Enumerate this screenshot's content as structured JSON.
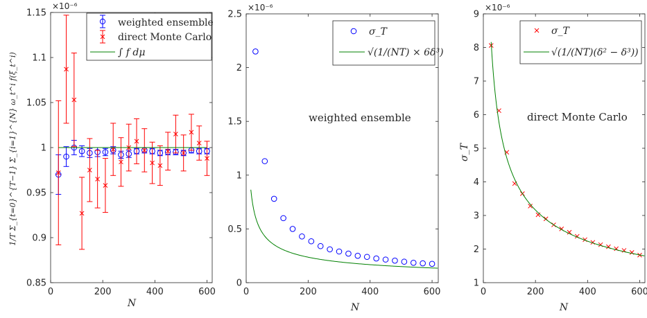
{
  "chart_data": [
    {
      "type": "scatter",
      "xlabel": "N",
      "ylabel": "1/T Σ_{t=0}^{T−1} Σ_{i=1}^{N} ω_t^i f(ξ_t^i)",
      "xlim": [
        0,
        620
      ],
      "ylim": [
        0.85,
        1.15
      ],
      "xticks": [
        "0",
        "200",
        "400",
        "600"
      ],
      "yticks": [
        "0.85",
        "0.9",
        "0.95",
        "1",
        "1.05",
        "1.1",
        "1.15"
      ],
      "exponent_label": "×10⁻⁶",
      "legend_position": "top-right",
      "x": [
        30,
        60,
        90,
        120,
        150,
        180,
        210,
        240,
        270,
        300,
        330,
        360,
        390,
        420,
        450,
        480,
        510,
        540,
        570,
        600
      ],
      "series": [
        {
          "name": "weighted ensemble",
          "marker": "circle",
          "color": "#0000ff",
          "values": [
            0.97,
            0.99,
            1.0,
            0.996,
            0.994,
            0.995,
            0.995,
            0.997,
            0.992,
            0.993,
            0.996,
            0.997,
            0.996,
            0.994,
            0.995,
            0.995,
            0.994,
            0.997,
            0.996,
            0.996
          ],
          "err": [
            0.022,
            0.011,
            0.008,
            0.006,
            0.005,
            0.005,
            0.004,
            0.004,
            0.004,
            0.004,
            0.003,
            0.003,
            0.003,
            0.003,
            0.003,
            0.003,
            0.003,
            0.003,
            0.003,
            0.003
          ]
        },
        {
          "name": "direct Monte Carlo",
          "marker": "x",
          "color": "#ff0000",
          "values": [
            0.972,
            1.087,
            1.053,
            0.927,
            0.975,
            0.965,
            0.958,
            0.998,
            0.984,
            1.0,
            1.007,
            0.997,
            0.983,
            0.98,
            0.996,
            1.015,
            0.994,
            1.017,
            1.005,
            0.988
          ],
          "err": [
            0.08,
            0.06,
            0.052,
            0.04,
            0.035,
            0.032,
            0.03,
            0.029,
            0.027,
            0.026,
            0.025,
            0.024,
            0.023,
            0.022,
            0.021,
            0.021,
            0.02,
            0.02,
            0.019,
            0.019
          ]
        },
        {
          "name": "∫ f dμ",
          "marker": "line",
          "color": "#008000",
          "x": [
            30,
            600
          ],
          "values": [
            1.0,
            1.0
          ]
        }
      ]
    },
    {
      "type": "scatter",
      "xlabel": "N",
      "ylabel": "",
      "xlim": [
        0,
        620
      ],
      "ylim": [
        0,
        2.5
      ],
      "xticks": [
        "0",
        "200",
        "400",
        "600"
      ],
      "yticks": [
        "0",
        "0.5",
        "1",
        "1.5",
        "2",
        "2.5"
      ],
      "exponent_label": "×10⁻⁶",
      "legend_position": "top-right",
      "annotation": "weighted ensemble",
      "series": [
        {
          "name": "σ_T",
          "marker": "circle",
          "color": "#0000ff",
          "x": [
            30,
            60,
            90,
            120,
            150,
            180,
            210,
            240,
            270,
            300,
            330,
            360,
            390,
            420,
            450,
            480,
            510,
            540,
            570,
            600
          ],
          "values": [
            2.15,
            1.13,
            0.78,
            0.6,
            0.5,
            0.43,
            0.385,
            0.34,
            0.31,
            0.29,
            0.27,
            0.25,
            0.24,
            0.225,
            0.215,
            0.205,
            0.195,
            0.185,
            0.18,
            0.175
          ]
        },
        {
          "name": "√(1/(NT) × 6δ³)",
          "marker": "line",
          "color": "#008000",
          "formula_coeff": 3.35,
          "x_range": [
            15,
            620
          ]
        }
      ]
    },
    {
      "type": "scatter",
      "xlabel": "N",
      "ylabel": "σ_T",
      "xlim": [
        0,
        620
      ],
      "ylim": [
        1,
        9
      ],
      "xticks": [
        "0",
        "200",
        "400",
        "600"
      ],
      "yticks": [
        "1",
        "2",
        "3",
        "4",
        "5",
        "6",
        "7",
        "8",
        "9"
      ],
      "exponent_label": "×10⁻⁶",
      "legend_position": "top-right",
      "annotation": "direct Monte Carlo",
      "series": [
        {
          "name": "σ_T",
          "marker": "x",
          "color": "#ff0000",
          "x": [
            30,
            60,
            90,
            120,
            150,
            180,
            210,
            240,
            270,
            300,
            330,
            360,
            390,
            420,
            450,
            480,
            510,
            540,
            570,
            600
          ],
          "values": [
            8.06,
            6.12,
            4.88,
            3.95,
            3.65,
            3.28,
            3.02,
            2.9,
            2.72,
            2.6,
            2.5,
            2.38,
            2.28,
            2.2,
            2.13,
            2.07,
            2.01,
            1.96,
            1.9,
            1.82
          ]
        },
        {
          "name": "√(1/(NT)(δ² − δ³))",
          "marker": "line",
          "color": "#008000",
          "formula_coeff": 44.7,
          "x_range": [
            30,
            620
          ]
        }
      ]
    }
  ]
}
